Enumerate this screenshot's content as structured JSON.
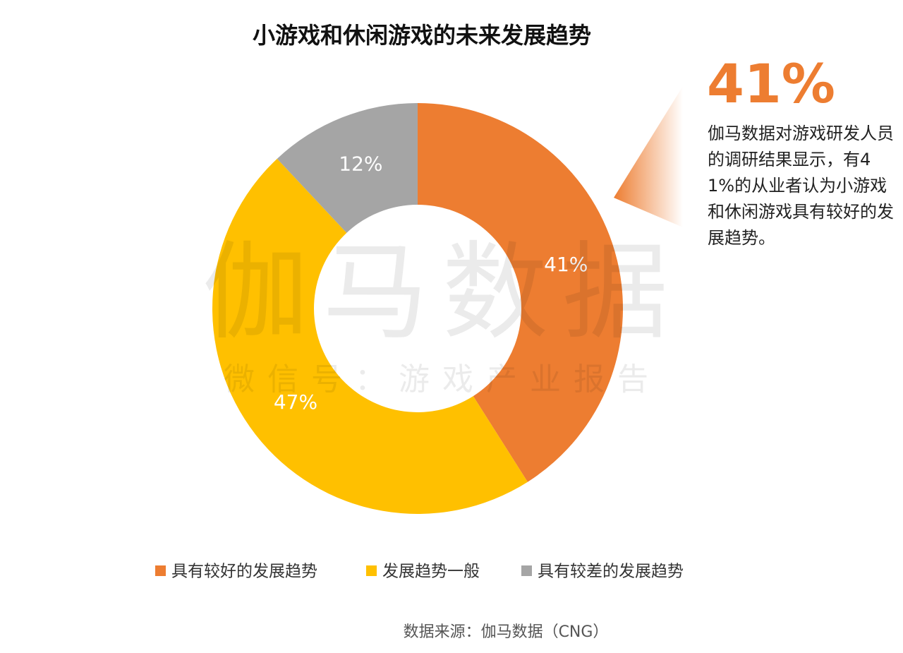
{
  "chart_data": {
    "type": "donut",
    "title": "小游戏和休闲游戏的未来发展趋势",
    "categories": [
      "具有较好的发展趋势",
      "发展趋势一般",
      "具有较差的发展趋势"
    ],
    "values": [
      41,
      47,
      12
    ],
    "value_labels": [
      "41%",
      "47%",
      "12%"
    ],
    "colors": [
      "#ED7D31",
      "#FFC000",
      "#A5A5A5"
    ],
    "legend": "bottom",
    "annotation_value": "41%",
    "annotation_text": "伽马数据对游戏研发人员的调研结果显示，有41%的从业者认为小游戏和休闲游戏具有较好的发展趋势。",
    "watermark": [
      "伽马数据",
      "微信号：游戏产业报告"
    ],
    "source": "数据来源：伽马数据（CNG）"
  }
}
